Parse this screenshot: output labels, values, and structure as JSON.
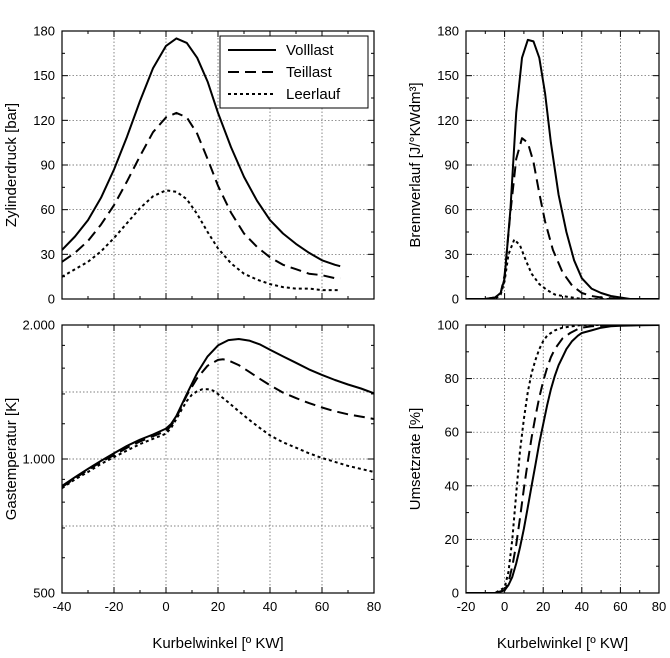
{
  "chart_data": [
    {
      "id": "pressure",
      "type": "line",
      "title": "",
      "xlabel": "",
      "ylabel": "Zylinderdruck [bar]",
      "xlim": [
        -40,
        80
      ],
      "ylim": [
        0,
        180
      ],
      "xticks": [
        -40,
        -20,
        0,
        20,
        40,
        60,
        80
      ],
      "yticks": [
        0,
        30,
        60,
        90,
        120,
        150,
        180
      ],
      "ytick_labels": [
        "0",
        "30",
        "60",
        "90",
        "120",
        "150",
        "180"
      ],
      "grid": true,
      "legend": {
        "position": "top-right",
        "entries": [
          "Volllast",
          "Teillast",
          "Leerlauf"
        ]
      },
      "series": [
        {
          "name": "Volllast",
          "dash": "solid",
          "x": [
            -40,
            -35,
            -30,
            -25,
            -20,
            -15,
            -10,
            -5,
            0,
            4,
            8,
            12,
            16,
            20,
            25,
            30,
            35,
            40,
            45,
            50,
            55,
            60,
            65,
            67
          ],
          "y": [
            33,
            42,
            53,
            68,
            87,
            109,
            133,
            155,
            170,
            175,
            172,
            162,
            146,
            125,
            102,
            82,
            66,
            53,
            44,
            37,
            31,
            26,
            23,
            22
          ]
        },
        {
          "name": "Teillast",
          "dash": "dash",
          "x": [
            -40,
            -35,
            -30,
            -25,
            -20,
            -15,
            -10,
            -5,
            0,
            4,
            8,
            12,
            16,
            20,
            25,
            30,
            35,
            40,
            45,
            50,
            55,
            60,
            65,
            67
          ],
          "y": [
            25,
            31,
            39,
            50,
            63,
            79,
            96,
            112,
            122,
            125,
            122,
            111,
            94,
            76,
            58,
            44,
            35,
            28,
            23,
            20,
            17,
            16,
            14,
            14
          ]
        },
        {
          "name": "Leerlauf",
          "dash": "dot",
          "x": [
            -40,
            -35,
            -30,
            -25,
            -20,
            -15,
            -10,
            -5,
            0,
            4,
            8,
            12,
            16,
            20,
            25,
            30,
            35,
            40,
            45,
            50,
            55,
            60,
            65,
            67
          ],
          "y": [
            15,
            20,
            25,
            32,
            41,
            51,
            61,
            69,
            73,
            72,
            67,
            57,
            45,
            34,
            24,
            17,
            13,
            10,
            8,
            7,
            7,
            6,
            6,
            6
          ]
        }
      ]
    },
    {
      "id": "burn_rate",
      "type": "line",
      "title": "",
      "xlabel": "",
      "ylabel": "Brennverlauf [J/°KWdm³]",
      "xlim": [
        -20,
        80
      ],
      "ylim": [
        0,
        180
      ],
      "xticks": [
        -20,
        0,
        20,
        40,
        60,
        80
      ],
      "yticks": [
        0,
        30,
        60,
        90,
        120,
        150,
        180
      ],
      "ytick_labels": [
        "0",
        "30",
        "60",
        "90",
        "120",
        "150",
        "180"
      ],
      "grid": true,
      "series": [
        {
          "name": "Volllast",
          "dash": "solid",
          "x": [
            -20,
            -10,
            -5,
            -2,
            0,
            3,
            6,
            9,
            12,
            15,
            18,
            21,
            24,
            28,
            32,
            36,
            40,
            45,
            50,
            55,
            60,
            65,
            70,
            80
          ],
          "y": [
            0,
            0,
            1,
            4,
            14,
            60,
            125,
            162,
            174,
            173,
            162,
            138,
            105,
            70,
            45,
            26,
            14,
            7,
            4,
            2,
            1,
            0,
            0,
            0
          ]
        },
        {
          "name": "Teillast",
          "dash": "dash",
          "x": [
            -20,
            -10,
            -5,
            -2,
            0,
            3,
            6,
            9,
            12,
            15,
            18,
            21,
            25,
            30,
            35,
            40,
            45,
            50,
            60,
            70,
            80
          ],
          "y": [
            0,
            0,
            1,
            4,
            16,
            58,
            94,
            108,
            105,
            92,
            71,
            52,
            33,
            18,
            9,
            4,
            2,
            1,
            0,
            0,
            0
          ]
        },
        {
          "name": "Leerlauf",
          "dash": "dot",
          "x": [
            -20,
            -5,
            -2,
            0,
            2,
            5,
            8,
            11,
            14,
            18,
            22,
            26,
            30,
            35,
            40,
            50,
            60,
            80
          ],
          "y": [
            0,
            0,
            3,
            12,
            30,
            40,
            36,
            26,
            17,
            10,
            6,
            3,
            2,
            1,
            0,
            0,
            0,
            0
          ]
        }
      ]
    },
    {
      "id": "gas_temperature",
      "type": "line",
      "title": "",
      "xlabel": "Kurbelwinkel [º KW]",
      "ylabel": "Gastemperatur [K]",
      "xlim": [
        -40,
        80
      ],
      "ylim": [
        500,
        2000
      ],
      "scale": "log",
      "xticks": [
        -40,
        -20,
        0,
        20,
        40,
        60,
        80
      ],
      "xtick_labels": [
        "-40",
        "-20",
        "0",
        "20",
        "40",
        "60",
        "80"
      ],
      "yticks": [
        500,
        1000,
        2000
      ],
      "ytick_labels": [
        "500",
        "1.000",
        "2.000"
      ],
      "grid": true,
      "series": [
        {
          "name": "Volllast",
          "dash": "solid",
          "x": [
            -40,
            -35,
            -30,
            -25,
            -20,
            -15,
            -10,
            -5,
            0,
            2,
            4,
            8,
            12,
            16,
            20,
            24,
            28,
            32,
            36,
            40,
            45,
            50,
            55,
            60,
            65,
            70,
            75,
            80
          ],
          "y": [
            870,
            910,
            950,
            990,
            1030,
            1070,
            1105,
            1135,
            1170,
            1200,
            1250,
            1400,
            1560,
            1700,
            1800,
            1850,
            1860,
            1845,
            1810,
            1760,
            1700,
            1645,
            1590,
            1545,
            1505,
            1470,
            1440,
            1405
          ]
        },
        {
          "name": "Teillast",
          "dash": "dash",
          "x": [
            -40,
            -35,
            -30,
            -25,
            -20,
            -15,
            -10,
            -5,
            0,
            2,
            4,
            8,
            12,
            16,
            20,
            22,
            24,
            28,
            32,
            36,
            40,
            45,
            50,
            55,
            60,
            65,
            70,
            75,
            80
          ],
          "y": [
            865,
            905,
            945,
            985,
            1020,
            1060,
            1095,
            1125,
            1155,
            1190,
            1240,
            1390,
            1520,
            1620,
            1670,
            1675,
            1665,
            1625,
            1570,
            1515,
            1465,
            1410,
            1370,
            1335,
            1305,
            1280,
            1260,
            1245,
            1230
          ]
        },
        {
          "name": "Leerlauf",
          "dash": "dot",
          "x": [
            -40,
            -35,
            -30,
            -25,
            -20,
            -15,
            -10,
            -5,
            0,
            2,
            4,
            6,
            8,
            10,
            12,
            14,
            16,
            18,
            20,
            24,
            28,
            32,
            36,
            40,
            45,
            50,
            55,
            60,
            65,
            70,
            75,
            80
          ],
          "y": [
            860,
            900,
            935,
            975,
            1010,
            1045,
            1080,
            1110,
            1140,
            1175,
            1230,
            1290,
            1350,
            1395,
            1420,
            1435,
            1435,
            1425,
            1400,
            1340,
            1280,
            1225,
            1175,
            1130,
            1090,
            1060,
            1030,
            1005,
            985,
            965,
            950,
            935
          ]
        }
      ]
    },
    {
      "id": "conversion_rate",
      "type": "line",
      "title": "",
      "xlabel": "Kurbelwinkel [º KW]",
      "ylabel": "Umsetzrate [%]",
      "xlim": [
        -20,
        80
      ],
      "ylim": [
        0,
        100
      ],
      "xticks": [
        -20,
        0,
        20,
        40,
        60,
        80
      ],
      "xtick_labels": [
        "-20",
        "0",
        "20",
        "40",
        "60",
        "80"
      ],
      "yticks": [
        0,
        20,
        40,
        60,
        80,
        100
      ],
      "ytick_labels": [
        "0",
        "20",
        "40",
        "60",
        "80",
        "100"
      ],
      "grid": true,
      "series": [
        {
          "name": "Volllast",
          "dash": "solid",
          "x": [
            -20,
            -10,
            -5,
            0,
            2,
            4,
            6,
            8,
            10,
            12,
            14,
            16,
            18,
            20,
            22,
            24,
            26,
            28,
            30,
            32,
            35,
            38,
            40,
            45,
            50,
            55,
            60,
            70,
            80
          ],
          "y": [
            0,
            0,
            0,
            1,
            3,
            6,
            11,
            17,
            24,
            32,
            40,
            48,
            56,
            63,
            70,
            76,
            81,
            85,
            88,
            91,
            94,
            96,
            97,
            98,
            99,
            99.5,
            99.7,
            99.9,
            100
          ]
        },
        {
          "name": "Teillast",
          "dash": "dash",
          "x": [
            -20,
            -10,
            -5,
            0,
            2,
            4,
            6,
            8,
            10,
            12,
            14,
            16,
            18,
            20,
            22,
            24,
            26,
            28,
            30,
            34,
            38,
            40,
            45,
            50,
            60,
            70,
            80
          ],
          "y": [
            0,
            0,
            0,
            1,
            4,
            10,
            18,
            28,
            39,
            49,
            58,
            66,
            73,
            79,
            84,
            88,
            91,
            93,
            95,
            97,
            98.5,
            99,
            99.5,
            99.8,
            100,
            100,
            100
          ]
        },
        {
          "name": "Leerlauf",
          "dash": "dot",
          "x": [
            -20,
            -10,
            -5,
            0,
            2,
            4,
            6,
            8,
            10,
            12,
            14,
            16,
            18,
            20,
            22,
            24,
            26,
            28,
            30,
            35,
            40,
            50,
            60,
            80
          ],
          "y": [
            0,
            0,
            0,
            2,
            8,
            20,
            37,
            53,
            65,
            75,
            82,
            87,
            91,
            94,
            96,
            97,
            98,
            98.5,
            99,
            99.5,
            100,
            100,
            100,
            100
          ]
        }
      ]
    }
  ]
}
